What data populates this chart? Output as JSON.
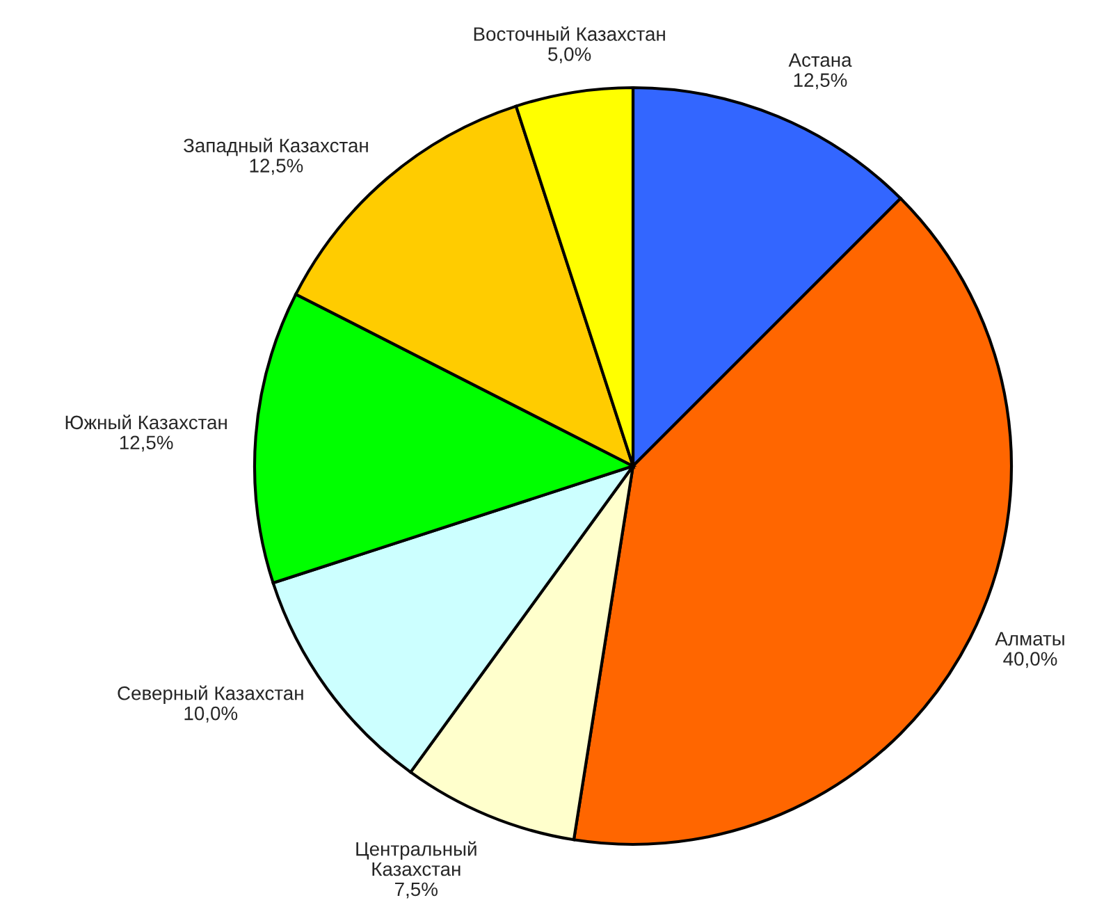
{
  "chart_data": {
    "type": "pie",
    "categories": [
      "Астана",
      "Алматы",
      "Центральный Казахстан",
      "Северный Казахстан",
      "Южный Казахстан",
      "Западный Казахстан",
      "Восточный Казахстан"
    ],
    "values": [
      12.5,
      40.0,
      7.5,
      10.0,
      12.5,
      12.5,
      5.0
    ],
    "value_labels": [
      "12,5%",
      "40,0%",
      "7,5%",
      "10,0%",
      "12,5%",
      "12,5%",
      "5,0%"
    ],
    "colors": [
      "#3366ff",
      "#ff6600",
      "#ffffcc",
      "#ccffff",
      "#00ff00",
      "#ffcc00",
      "#ffff00"
    ]
  }
}
